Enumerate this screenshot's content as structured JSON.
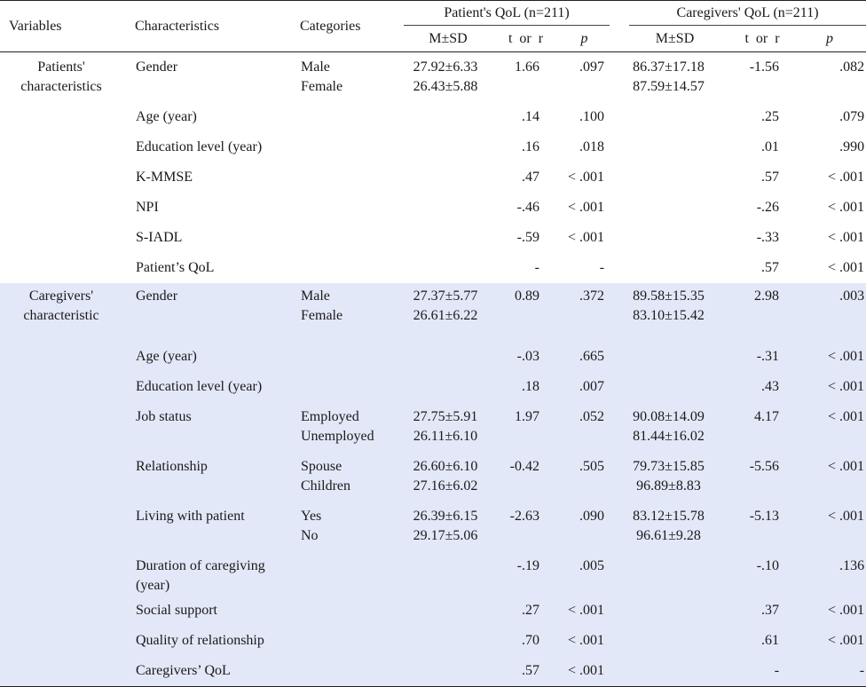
{
  "header": {
    "variables": "Variables",
    "characteristics": "Characteristics",
    "categories": "Categories",
    "patient_group": "Patient's QoL (n=211)",
    "caregiver_group": "Caregivers' QoL (n=211)",
    "msd": "M±SD",
    "t_or_r": "t  or  r",
    "p": "p"
  },
  "sections": [
    {
      "variable": [
        "Patients'",
        "characteristics"
      ],
      "rows": [
        {
          "characteristic": "Gender",
          "categories": [
            "Male",
            "Female"
          ],
          "pat_msd": [
            "27.92±6.33",
            "26.43±5.88"
          ],
          "pat_t": "1.66",
          "pat_p": ".097",
          "care_msd": [
            "86.37±17.18",
            "87.59±14.57"
          ],
          "care_t": "-1.56",
          "care_p": ".082"
        },
        {
          "characteristic": "Age (year)",
          "categories": [],
          "pat_msd": [],
          "pat_t": ".14",
          "pat_p": ".100",
          "care_msd": [],
          "care_t": ".25",
          "care_p": ".079"
        },
        {
          "characteristic": "Education level (year)",
          "categories": [],
          "pat_msd": [],
          "pat_t": ".16",
          "pat_p": ".018",
          "care_msd": [],
          "care_t": ".01",
          "care_p": ".990"
        },
        {
          "characteristic": "K-MMSE",
          "categories": [],
          "pat_msd": [],
          "pat_t": ".47",
          "pat_p": "< .001",
          "care_msd": [],
          "care_t": ".57",
          "care_p": "< .001"
        },
        {
          "characteristic": "NPI",
          "categories": [],
          "pat_msd": [],
          "pat_t": "-.46",
          "pat_p": "< .001",
          "care_msd": [],
          "care_t": "-.26",
          "care_p": "< .001"
        },
        {
          "characteristic": "S-IADL",
          "categories": [],
          "pat_msd": [],
          "pat_t": "-.59",
          "pat_p": "< .001",
          "care_msd": [],
          "care_t": "-.33",
          "care_p": "< .001"
        },
        {
          "characteristic": "Patient’s QoL",
          "categories": [],
          "pat_msd": [],
          "pat_t": "-",
          "pat_p": "-",
          "care_msd": [],
          "care_t": ".57",
          "care_p": "< .001"
        }
      ]
    },
    {
      "variable": [
        "Caregivers'",
        "characteristic"
      ],
      "rows": [
        {
          "characteristic": "Gender",
          "categories": [
            "Male",
            "Female"
          ],
          "pat_msd": [
            "27.37±5.77",
            "26.61±6.22"
          ],
          "pat_t": "0.89",
          "pat_p": ".372",
          "care_msd": [
            "89.58±15.35",
            "83.10±15.42"
          ],
          "care_t": "2.98",
          "care_p": ".003"
        },
        {
          "characteristic": "Age (year)",
          "categories": [],
          "pat_msd": [],
          "pat_t": "-.03",
          "pat_p": ".665",
          "care_msd": [],
          "care_t": "-.31",
          "care_p": "< .001"
        },
        {
          "characteristic": "Education level (year)",
          "categories": [],
          "pat_msd": [],
          "pat_t": ".18",
          "pat_p": ".007",
          "care_msd": [],
          "care_t": ".43",
          "care_p": "< .001"
        },
        {
          "characteristic": "Job status",
          "categories": [
            "Employed",
            "Unemployed"
          ],
          "pat_msd": [
            "27.75±5.91",
            "26.11±6.10"
          ],
          "pat_t": "1.97",
          "pat_p": ".052",
          "care_msd": [
            "90.08±14.09",
            "81.44±16.02"
          ],
          "care_t": "4.17",
          "care_p": "< .001"
        },
        {
          "characteristic": "Relationship",
          "categories": [
            "Spouse",
            "Children"
          ],
          "pat_msd": [
            "26.60±6.10",
            "27.16±6.02"
          ],
          "pat_t": "-0.42",
          "pat_p": ".505",
          "care_msd": [
            "79.73±15.85",
            "96.89±8.83"
          ],
          "care_t": "-5.56",
          "care_p": "< .001"
        },
        {
          "characteristic": "Living with patient",
          "categories": [
            "Yes",
            "No"
          ],
          "pat_msd": [
            "26.39±6.15",
            "29.17±5.06"
          ],
          "pat_t": "-2.63",
          "pat_p": ".090",
          "care_msd": [
            "83.12±15.78",
            "96.61±9.28"
          ],
          "care_t": "-5.13",
          "care_p": "< .001"
        },
        {
          "characteristic": "Duration of caregiving (year)",
          "categories": [],
          "pat_msd": [],
          "pat_t": "-.19",
          "pat_p": ".005",
          "care_msd": [],
          "care_t": "-.10",
          "care_p": ".136"
        },
        {
          "characteristic": "Social support",
          "categories": [],
          "pat_msd": [],
          "pat_t": ".27",
          "pat_p": "< .001",
          "care_msd": [],
          "care_t": ".37",
          "care_p": "< .001"
        },
        {
          "characteristic": "Quality of relationship",
          "categories": [],
          "pat_msd": [],
          "pat_t": ".70",
          "pat_p": "< .001",
          "care_msd": [],
          "care_t": ".61",
          "care_p": "< .001"
        },
        {
          "characteristic": "Caregivers’ QoL",
          "categories": [],
          "pat_msd": [],
          "pat_t": ".57",
          "pat_p": "< .001",
          "care_msd": [],
          "care_t": "-",
          "care_p": "-"
        }
      ]
    }
  ]
}
